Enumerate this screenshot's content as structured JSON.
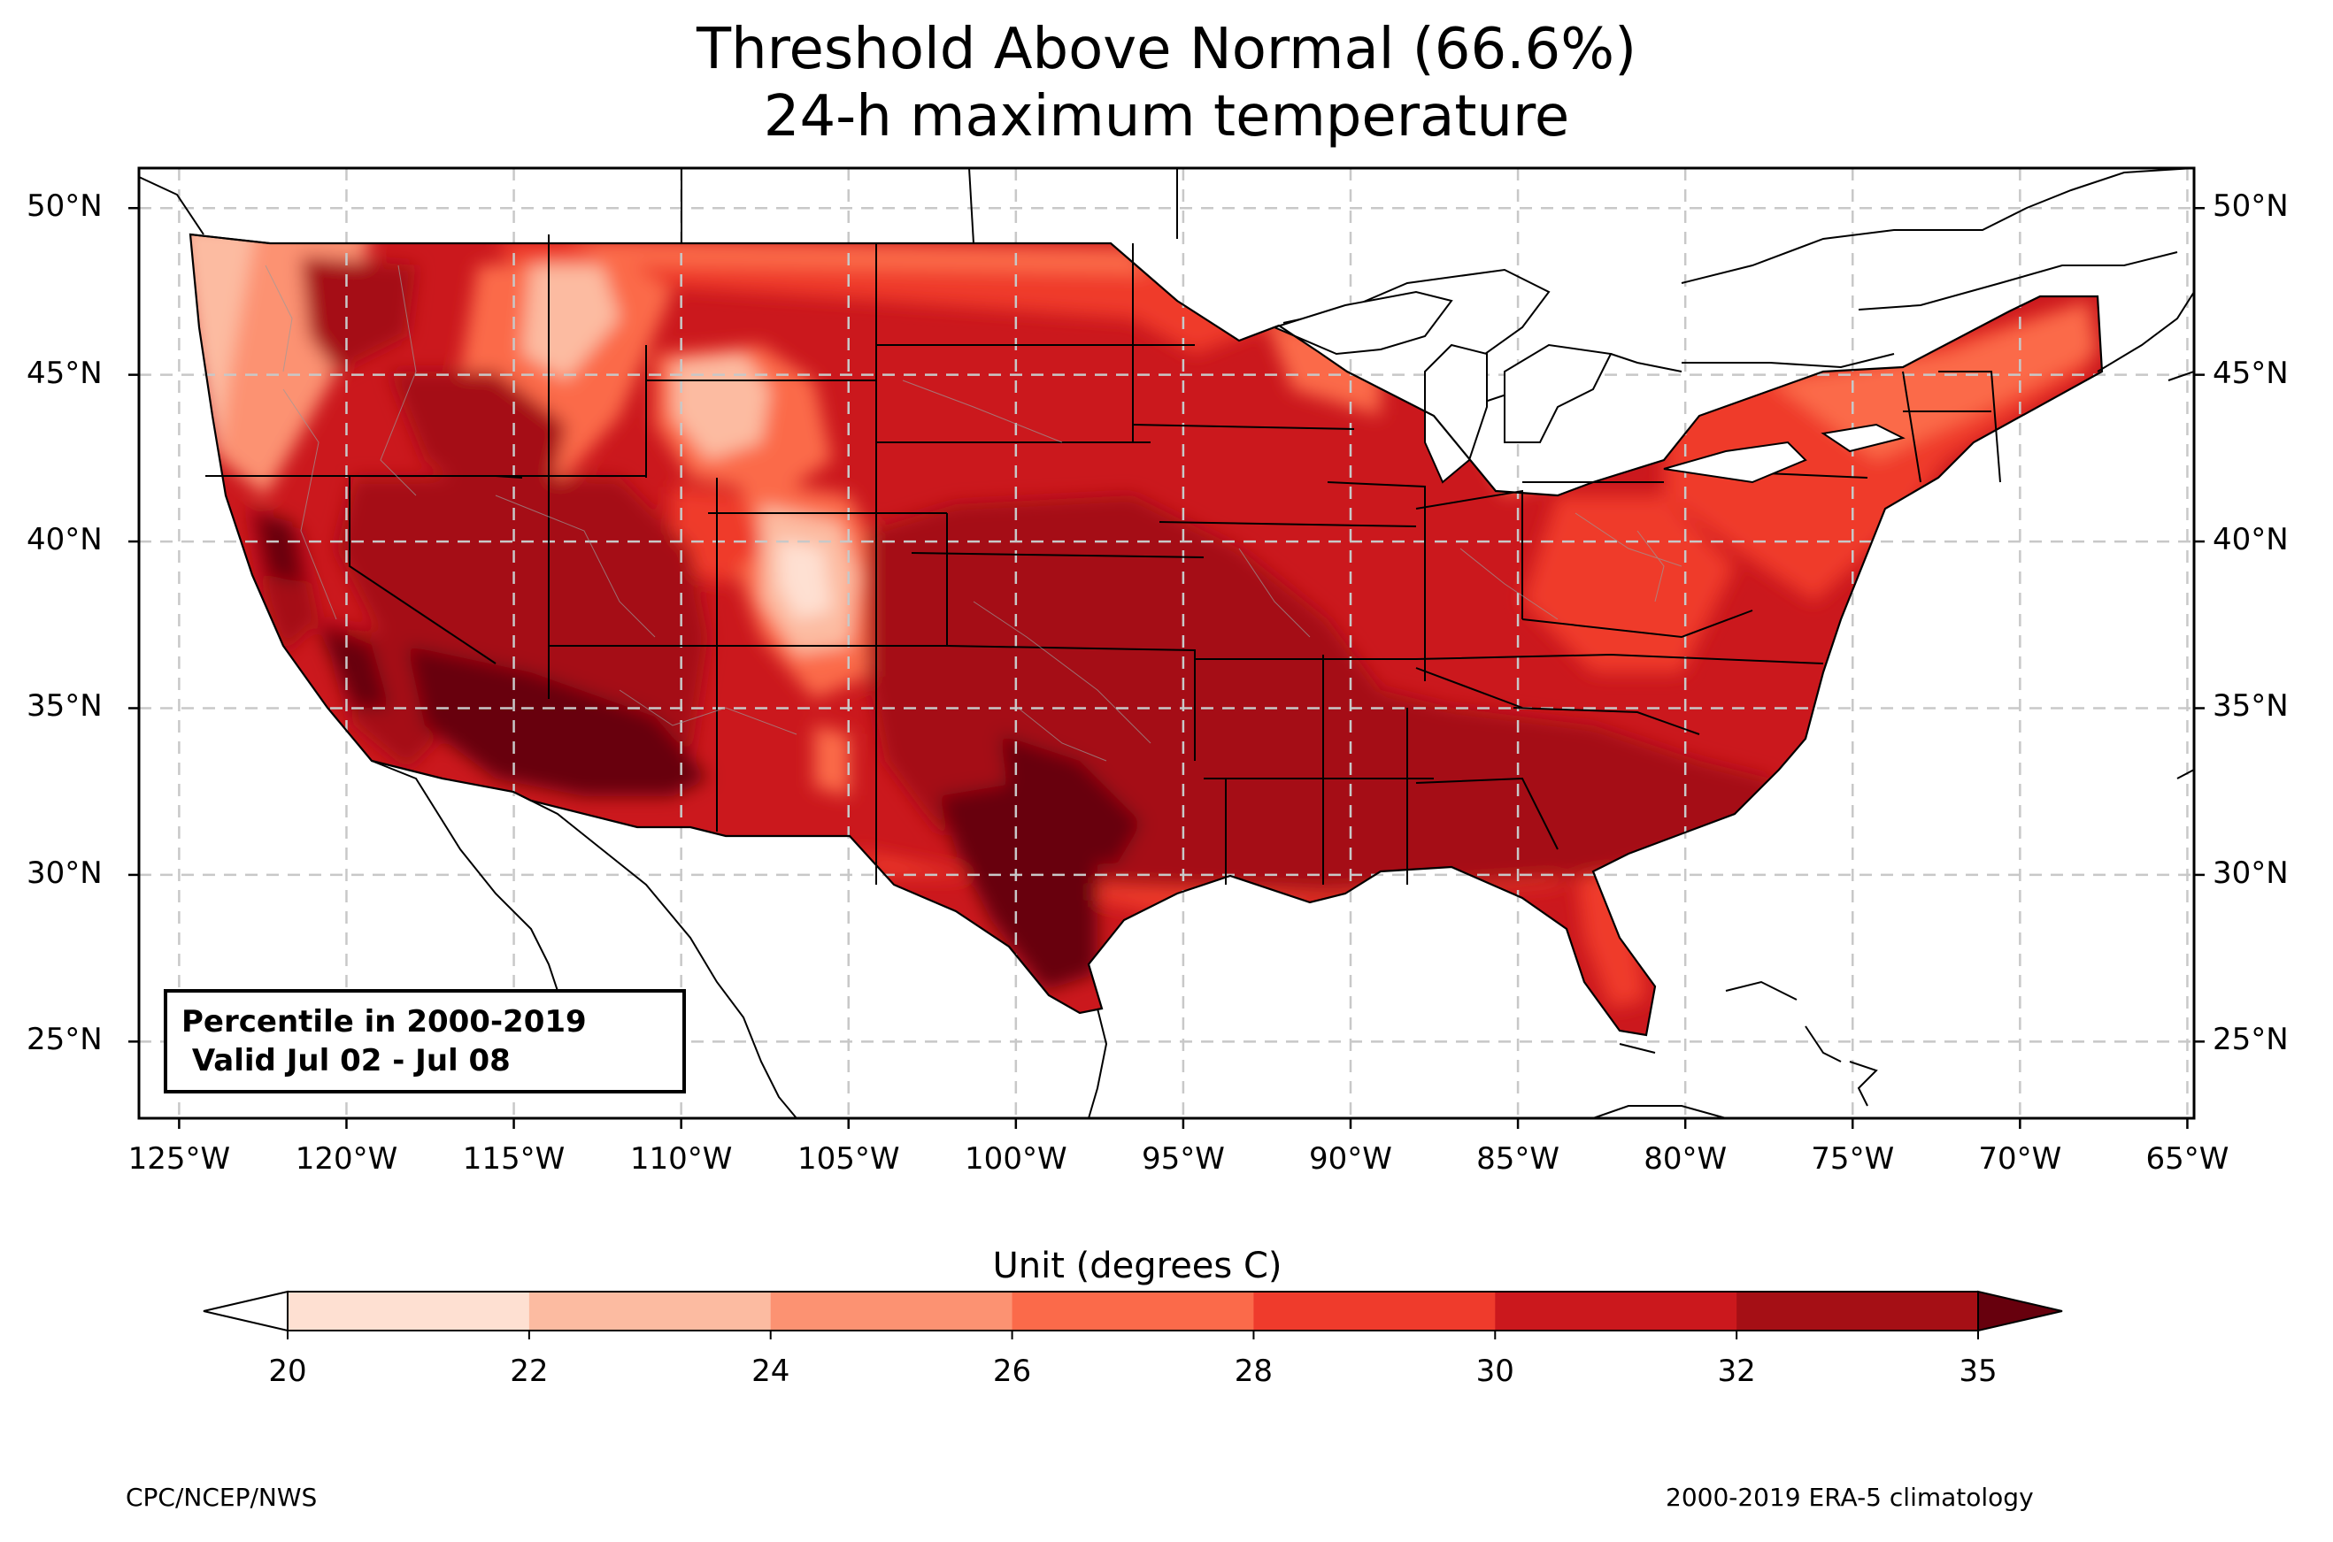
{
  "title": {
    "line1": "Threshold Above Normal (66.6%)",
    "line2": "24-h maximum temperature"
  },
  "map": {
    "lat_labels": [
      "50°N",
      "45°N",
      "40°N",
      "35°N",
      "30°N",
      "25°N"
    ],
    "lon_labels": [
      "125°W",
      "120°W",
      "115°W",
      "110°W",
      "105°W",
      "100°W",
      "95°W",
      "90°W",
      "85°W",
      "80°W",
      "75°W",
      "70°W",
      "65°W"
    ],
    "lat_values": [
      50,
      45,
      40,
      35,
      30,
      25
    ],
    "lon_values": [
      -125,
      -120,
      -115,
      -110,
      -105,
      -100,
      -95,
      -90,
      -85,
      -80,
      -75,
      -70,
      -65
    ],
    "extent": {
      "lon_min": -126.2,
      "lon_max": -64.8,
      "lat_min": 22.7,
      "lat_max": 51.2
    },
    "info": {
      "line1": "Percentile in 2000-2019",
      "line2": " Valid Jul 02 - Jul 08"
    }
  },
  "colorbar": {
    "title": "Unit (degrees C)",
    "ticks": [
      "20",
      "22",
      "24",
      "26",
      "28",
      "30",
      "32",
      "35"
    ],
    "colors": [
      "#fee0d2",
      "#fcbba1",
      "#fc9272",
      "#fb6a4a",
      "#ef3b2c",
      "#cb181d",
      "#a50f15",
      "#67000d"
    ],
    "under_color": "#ffffff",
    "over_color": "#67000d"
  },
  "footer": {
    "left": "CPC/NCEP/NWS",
    "right": "2000-2019 ERA-5 climatology"
  }
}
